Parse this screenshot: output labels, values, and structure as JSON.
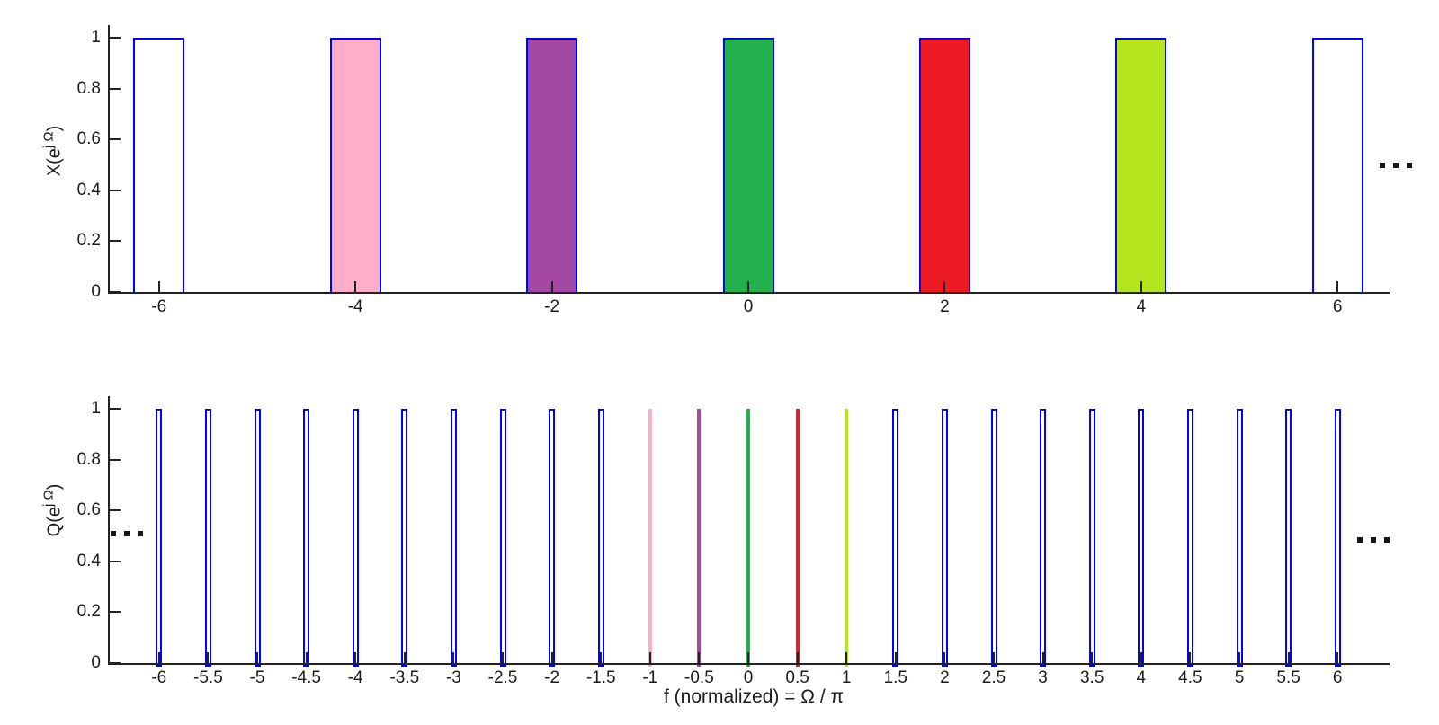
{
  "figure": {
    "background": "#ffffff",
    "axis_color": "#222222",
    "colors": {
      "outline": "#0000ff",
      "white": "#ffffff",
      "pink": "#ffaec9",
      "purple": "#a349a4",
      "green": "#22b14c",
      "red": "#ed1c24",
      "lime": "#b5e61d"
    },
    "continuation_mark": "..."
  },
  "chart_data": [
    {
      "type": "bar",
      "title": "",
      "ylabel": {
        "pre": "X(e",
        "sup": "j Ω",
        "post": ")"
      },
      "xlabel": "",
      "xlim": [
        -6.5,
        6.5
      ],
      "ylim": [
        0,
        1.05
      ],
      "grid": false,
      "legend": null,
      "bar_width": 0.5,
      "yticks": [
        {
          "v": 0,
          "label": "0"
        },
        {
          "v": 0.2,
          "label": "0.2"
        },
        {
          "v": 0.4,
          "label": "0.4"
        },
        {
          "v": 0.6,
          "label": "0.6"
        },
        {
          "v": 0.8,
          "label": "0.8"
        },
        {
          "v": 1,
          "label": "1"
        }
      ],
      "xticks": [
        {
          "v": -6,
          "label": "-6"
        },
        {
          "v": -4,
          "label": "-4"
        },
        {
          "v": -2,
          "label": "-2"
        },
        {
          "v": 0,
          "label": "0"
        },
        {
          "v": 2,
          "label": "2"
        },
        {
          "v": 4,
          "label": "4"
        },
        {
          "v": 6,
          "label": "6"
        }
      ],
      "bars": [
        {
          "x": -6,
          "height": 1,
          "color": "#ffffff"
        },
        {
          "x": -4,
          "height": 1,
          "color": "#ffaec9"
        },
        {
          "x": -2,
          "height": 1,
          "color": "#a349a4"
        },
        {
          "x": 0,
          "height": 1,
          "color": "#22b14c"
        },
        {
          "x": 2,
          "height": 1,
          "color": "#ed1c24"
        },
        {
          "x": 4,
          "height": 1,
          "color": "#b5e61d"
        },
        {
          "x": 6,
          "height": 1,
          "color": "#ffffff"
        }
      ],
      "ellipsis_sides": [
        "right"
      ]
    },
    {
      "type": "bar",
      "title": "",
      "ylabel": {
        "pre": "Q(e",
        "sup": "j Ω",
        "post": ")"
      },
      "xlabel": "f (normalized) = Ω / π",
      "xlim": [
        -6.5,
        6.5
      ],
      "ylim": [
        0,
        1.05
      ],
      "grid": false,
      "legend": null,
      "bar_width": 0.06,
      "yticks": [
        {
          "v": 0,
          "label": "0"
        },
        {
          "v": 0.2,
          "label": "0.2"
        },
        {
          "v": 0.4,
          "label": "0.4"
        },
        {
          "v": 0.6,
          "label": "0.6"
        },
        {
          "v": 0.8,
          "label": "0.8"
        },
        {
          "v": 1,
          "label": "1"
        }
      ],
      "xticks": [
        {
          "v": -6,
          "label": "-6"
        },
        {
          "v": -5.5,
          "label": "-5.5"
        },
        {
          "v": -5,
          "label": "-5"
        },
        {
          "v": -4.5,
          "label": "-4.5"
        },
        {
          "v": -4,
          "label": "-4"
        },
        {
          "v": -3.5,
          "label": "-3.5"
        },
        {
          "v": -3,
          "label": "-3"
        },
        {
          "v": -2.5,
          "label": "-2.5"
        },
        {
          "v": -2,
          "label": "-2"
        },
        {
          "v": -1.5,
          "label": "-1.5"
        },
        {
          "v": -1,
          "label": "-1"
        },
        {
          "v": -0.5,
          "label": "-0.5"
        },
        {
          "v": 0,
          "label": "0"
        },
        {
          "v": 0.5,
          "label": "0.5"
        },
        {
          "v": 1,
          "label": "1"
        },
        {
          "v": 1.5,
          "label": "1.5"
        },
        {
          "v": 2,
          "label": "2"
        },
        {
          "v": 2.5,
          "label": "2.5"
        },
        {
          "v": 3,
          "label": "3"
        },
        {
          "v": 3.5,
          "label": "3.5"
        },
        {
          "v": 4,
          "label": "4"
        },
        {
          "v": 4.5,
          "label": "4.5"
        },
        {
          "v": 5,
          "label": "5"
        },
        {
          "v": 5.5,
          "label": "5.5"
        },
        {
          "v": 6,
          "label": "6"
        }
      ],
      "bars": [
        {
          "x": -6,
          "height": 1,
          "color": null
        },
        {
          "x": -5.5,
          "height": 1,
          "color": null
        },
        {
          "x": -5,
          "height": 1,
          "color": null
        },
        {
          "x": -4.5,
          "height": 1,
          "color": null
        },
        {
          "x": -4,
          "height": 1,
          "color": null
        },
        {
          "x": -3.5,
          "height": 1,
          "color": null
        },
        {
          "x": -3,
          "height": 1,
          "color": null
        },
        {
          "x": -2.5,
          "height": 1,
          "color": null
        },
        {
          "x": -2,
          "height": 1,
          "color": null
        },
        {
          "x": -1.5,
          "height": 1,
          "color": null
        },
        {
          "x": -1,
          "height": 1,
          "color": "#ffaec9"
        },
        {
          "x": -0.5,
          "height": 1,
          "color": "#a349a4"
        },
        {
          "x": 0,
          "height": 1,
          "color": "#22b14c"
        },
        {
          "x": 0.5,
          "height": 1,
          "color": "#ed1c24"
        },
        {
          "x": 1,
          "height": 1,
          "color": "#b5e61d"
        },
        {
          "x": 1.5,
          "height": 1,
          "color": null
        },
        {
          "x": 2,
          "height": 1,
          "color": null
        },
        {
          "x": 2.5,
          "height": 1,
          "color": null
        },
        {
          "x": 3,
          "height": 1,
          "color": null
        },
        {
          "x": 3.5,
          "height": 1,
          "color": null
        },
        {
          "x": 4,
          "height": 1,
          "color": null
        },
        {
          "x": 4.5,
          "height": 1,
          "color": null
        },
        {
          "x": 5,
          "height": 1,
          "color": null
        },
        {
          "x": 5.5,
          "height": 1,
          "color": null
        },
        {
          "x": 6,
          "height": 1,
          "color": null
        }
      ],
      "ellipsis_sides": [
        "left",
        "right"
      ]
    }
  ]
}
